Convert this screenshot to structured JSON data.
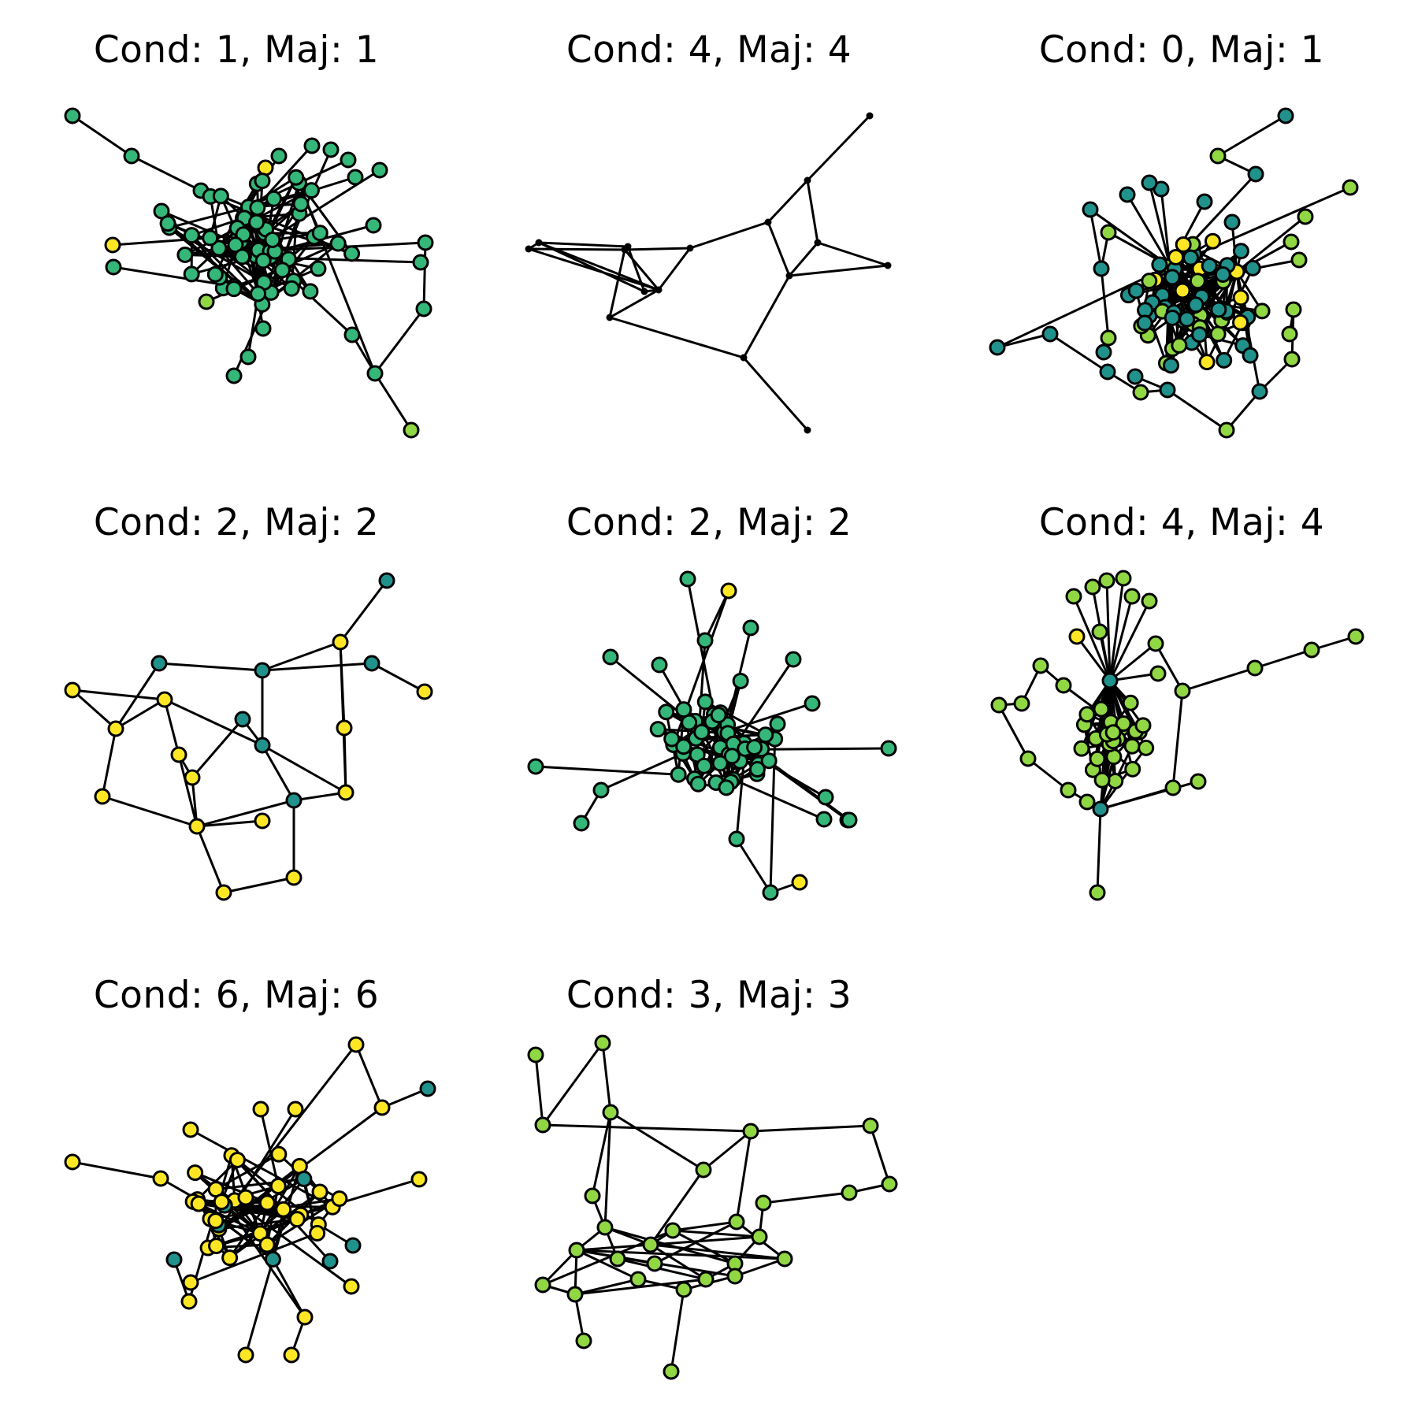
{
  "figure": {
    "palette": {
      "teal": "#21918c",
      "green": "#35b779",
      "lime": "#90d743",
      "yellow": "#fde725",
      "line": "#000000",
      "background": "#ffffff"
    },
    "panels": [
      {
        "title": "Cond: 1, Maj: 1",
        "condition": 1,
        "majority": 1,
        "node_size": "large",
        "graph_style": "dense-hub"
      },
      {
        "title": "Cond: 4, Maj: 4",
        "condition": 4,
        "majority": 4,
        "node_size": "point",
        "graph_style": "sparse"
      },
      {
        "title": "Cond: 0, Maj: 1",
        "condition": 0,
        "majority": 1,
        "node_size": "large",
        "graph_style": "dense-hub"
      },
      {
        "title": "Cond: 2, Maj: 2",
        "condition": 2,
        "majority": 2,
        "node_size": "large",
        "graph_style": "sparse"
      },
      {
        "title": "Cond: 2, Maj: 2",
        "condition": 2,
        "majority": 2,
        "node_size": "large",
        "graph_style": "dense"
      },
      {
        "title": "Cond: 4, Maj: 4",
        "condition": 4,
        "majority": 4,
        "node_size": "large",
        "graph_style": "fan"
      },
      {
        "title": "Cond: 6, Maj: 6",
        "condition": 6,
        "majority": 6,
        "node_size": "large",
        "graph_style": "dense"
      },
      {
        "title": "Cond: 3, Maj: 3",
        "condition": 3,
        "majority": 3,
        "node_size": "large",
        "graph_style": "medium"
      }
    ]
  }
}
